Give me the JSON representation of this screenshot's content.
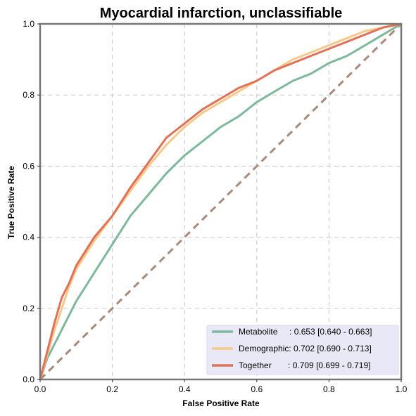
{
  "chart_data": {
    "type": "line",
    "title": "Myocardial infarction, unclassifiable",
    "xlabel": "False Positive Rate",
    "ylabel": "True Positive Rate",
    "xlim": [
      0,
      1
    ],
    "ylim": [
      0,
      1
    ],
    "xticks": [
      "0.0",
      "0.2",
      "0.4",
      "0.6",
      "0.8",
      "1.0"
    ],
    "yticks": [
      "0.0",
      "0.2",
      "0.4",
      "0.6",
      "0.8",
      "1.0"
    ],
    "grid": true,
    "legend_position": "bottom-right",
    "series": [
      {
        "name": "Metabolite",
        "legend_label": "Metabolite     : 0.653 [0.640 - 0.663]",
        "color": "#7fb99b",
        "x": [
          0,
          0.02,
          0.05,
          0.08,
          0.1,
          0.15,
          0.2,
          0.25,
          0.3,
          0.35,
          0.4,
          0.45,
          0.5,
          0.55,
          0.6,
          0.65,
          0.7,
          0.75,
          0.8,
          0.85,
          0.9,
          0.95,
          1.0
        ],
        "y": [
          0,
          0.06,
          0.12,
          0.18,
          0.22,
          0.3,
          0.38,
          0.46,
          0.52,
          0.58,
          0.63,
          0.67,
          0.71,
          0.74,
          0.78,
          0.81,
          0.84,
          0.86,
          0.89,
          0.91,
          0.94,
          0.97,
          1.0
        ]
      },
      {
        "name": "Demographic",
        "legend_label": "Demographic: 0.702 [0.690 - 0.713]",
        "color": "#f6c98b",
        "x": [
          0,
          0.02,
          0.04,
          0.06,
          0.08,
          0.1,
          0.15,
          0.2,
          0.25,
          0.3,
          0.35,
          0.4,
          0.45,
          0.5,
          0.55,
          0.6,
          0.65,
          0.7,
          0.75,
          0.8,
          0.85,
          0.9,
          0.95,
          1.0
        ],
        "y": [
          0,
          0.07,
          0.14,
          0.2,
          0.26,
          0.31,
          0.39,
          0.46,
          0.53,
          0.6,
          0.66,
          0.71,
          0.75,
          0.78,
          0.81,
          0.84,
          0.87,
          0.9,
          0.92,
          0.94,
          0.96,
          0.98,
          0.99,
          1.0
        ]
      },
      {
        "name": "Together",
        "legend_label": "Together       : 0.709 [0.699 - 0.719]",
        "color": "#e07259",
        "x": [
          0,
          0.02,
          0.04,
          0.06,
          0.08,
          0.1,
          0.15,
          0.2,
          0.25,
          0.3,
          0.35,
          0.4,
          0.45,
          0.5,
          0.55,
          0.6,
          0.65,
          0.7,
          0.75,
          0.8,
          0.85,
          0.9,
          0.95,
          1.0
        ],
        "y": [
          0,
          0.08,
          0.16,
          0.23,
          0.27,
          0.32,
          0.4,
          0.46,
          0.54,
          0.61,
          0.68,
          0.72,
          0.76,
          0.79,
          0.82,
          0.84,
          0.87,
          0.89,
          0.91,
          0.93,
          0.95,
          0.97,
          0.99,
          1.0
        ]
      }
    ],
    "reference_line": {
      "x": [
        0,
        1
      ],
      "y": [
        0,
        1
      ],
      "color": "#a88a7a",
      "style": "dashed"
    }
  }
}
